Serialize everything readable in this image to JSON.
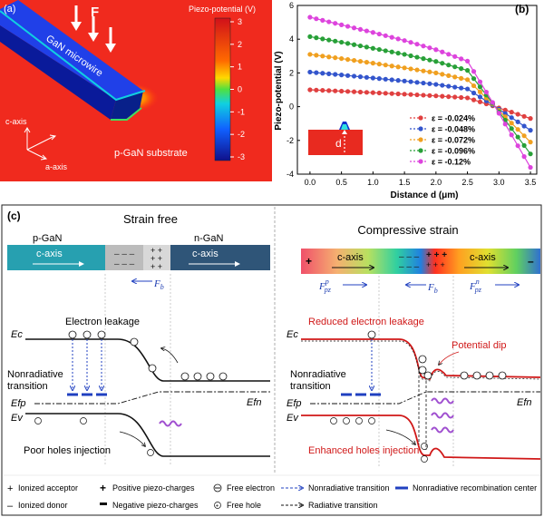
{
  "panel_a": {
    "label": "(a)",
    "force_label": "F",
    "microwire_label": "GaN microwire",
    "substrate_label": "p-GaN substrate",
    "axis_c": "c-axis",
    "axis_a": "a-axis",
    "colorbar": {
      "title": "Piezo-potential (V)",
      "ticks": [
        "3",
        "2",
        "1",
        "0",
        "-1",
        "-2",
        "-3"
      ]
    }
  },
  "panel_b": {
    "label": "(b)",
    "colors": [
      "#e04040",
      "#3355cc",
      "#f0a020",
      "#28a038",
      "#dd44dd"
    ]
  },
  "chart_data": {
    "type": "line",
    "xlabel": "Distance d (μm)",
    "ylabel": "Piezo-potential (V)",
    "xlim": [
      -0.2,
      3.6
    ],
    "ylim": [
      -4,
      6
    ],
    "xticks": [
      "0.0",
      "0.5",
      "1.0",
      "1.5",
      "2.0",
      "2.5",
      "3.0",
      "3.5"
    ],
    "yticks": [
      "6",
      "4",
      "2",
      "0",
      "-2",
      "-4"
    ],
    "inset_label": "d",
    "series": [
      {
        "name": "ε = -0.024%",
        "x": [
          0,
          0.5,
          1.0,
          1.5,
          2.0,
          2.5,
          2.9,
          3.5
        ],
        "y": [
          1.0,
          0.92,
          0.83,
          0.74,
          0.64,
          0.52,
          0.05,
          -0.7
        ]
      },
      {
        "name": "ε = -0.048%",
        "x": [
          0,
          0.5,
          1.0,
          1.5,
          2.0,
          2.5,
          2.9,
          3.5
        ],
        "y": [
          2.05,
          1.88,
          1.7,
          1.52,
          1.32,
          1.05,
          0.1,
          -1.4
        ]
      },
      {
        "name": "ε = -0.072%",
        "x": [
          0,
          0.5,
          1.0,
          1.5,
          2.0,
          2.5,
          2.9,
          3.5
        ],
        "y": [
          3.1,
          2.85,
          2.58,
          2.3,
          2.0,
          1.6,
          0.15,
          -2.1
        ]
      },
      {
        "name": "ε = -0.096%",
        "x": [
          0,
          0.5,
          1.0,
          1.5,
          2.0,
          2.5,
          2.9,
          3.5
        ],
        "y": [
          4.15,
          3.82,
          3.46,
          3.1,
          2.68,
          2.15,
          0.2,
          -2.8
        ]
      },
      {
        "name": "ε = -0.12%",
        "x": [
          0,
          0.5,
          1.0,
          1.5,
          2.0,
          2.5,
          2.9,
          3.5
        ],
        "y": [
          5.3,
          4.85,
          4.4,
          3.92,
          3.38,
          2.7,
          0.25,
          -3.6
        ]
      }
    ]
  },
  "panel_c": {
    "label": "(c)",
    "left": {
      "title": "Strain free",
      "p_label": "p-GaN",
      "n_label": "n-GaN",
      "caxis": "c-axis",
      "fb": "F",
      "fb_sub": "b",
      "electron_leakage": "Electron leakage",
      "ec": "Ec",
      "ev": "Ev",
      "efp": "Efp",
      "efn": "Efn",
      "nonrad": "Nonradiative",
      "transition": "transition",
      "poor_holes": "Poor holes injection"
    },
    "right": {
      "title": "Compressive strain",
      "caxis": "c-axis",
      "fpz": "F",
      "fpz_sub": "pz",
      "fpz_sup_p": "p",
      "fpz_sup_n": "n",
      "fb": "F",
      "fb_sub": "b",
      "reduced_leakage": "Reduced electron leakage",
      "potential_dip": "Potential dip",
      "ec": "Ec",
      "ev": "Ev",
      "efp": "Efp",
      "efn": "Efn",
      "nonrad": "Nonradiative",
      "transition": "transition",
      "enhanced_holes": "Enhanced holes injection"
    },
    "legend": {
      "ionized_acceptor": "Ionized acceptor",
      "ionized_donor": "Ionized donor",
      "positive_piezo": "Positive piezo-charges",
      "negative_piezo": "Negative piezo-charges",
      "free_electron": "Free electron",
      "free_hole": "Free hole",
      "nonrad_transition": "Nonradiative transition",
      "rad_transition": "Radiative transition",
      "nonrad_center": "Nonradiative recombination center"
    }
  }
}
